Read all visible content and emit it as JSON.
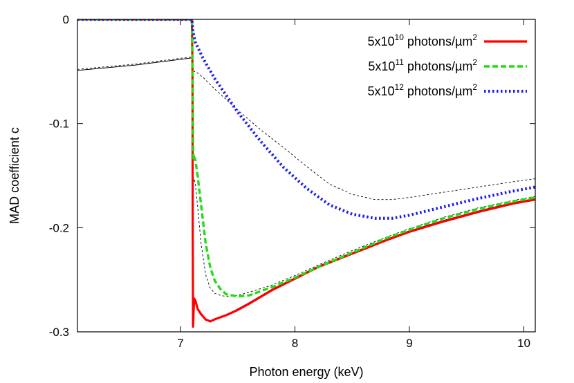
{
  "chart_data": {
    "type": "line",
    "title": "",
    "xlabel": "Photon energy (keV)",
    "ylabel": "MAD coefficient c",
    "xlim": [
      6.1,
      10.1
    ],
    "ylim": [
      -0.3,
      0.0
    ],
    "xticks": [
      7,
      8,
      9,
      10
    ],
    "yticks": [
      0,
      -0.1,
      -0.2,
      -0.3
    ],
    "xtick_labels": [
      "7",
      "8",
      "9",
      "10"
    ],
    "ytick_labels": [
      "0",
      "-0.1",
      "-0.2",
      "-0.3"
    ],
    "grid": false,
    "legend_position": "top-right",
    "series": [
      {
        "name": "5x10^10 photons/µm^2",
        "legend": {
          "base": "5x10",
          "exp": "10",
          "unit": " photons/µm",
          "unit_exp": "2"
        },
        "color": "#ff0000",
        "style": "solid",
        "in_legend": true,
        "x": [
          6.1,
          7.1,
          7.105,
          7.107,
          7.11,
          7.115,
          7.12,
          7.13,
          7.15,
          7.18,
          7.22,
          7.26,
          7.3,
          7.4,
          7.5,
          7.6,
          7.8,
          8.0,
          8.2,
          8.5,
          8.8,
          9.0,
          9.3,
          9.6,
          9.9,
          10.1
        ],
        "y": [
          0.0,
          0.0,
          -0.05,
          -0.2,
          -0.295,
          -0.28,
          -0.268,
          -0.27,
          -0.278,
          -0.283,
          -0.288,
          -0.29,
          -0.288,
          -0.284,
          -0.279,
          -0.273,
          -0.26,
          -0.249,
          -0.238,
          -0.225,
          -0.212,
          -0.204,
          -0.194,
          -0.185,
          -0.177,
          -0.173
        ]
      },
      {
        "name": "5x10^11 photons/µm^2",
        "legend": {
          "base": "5x10",
          "exp": "11",
          "unit": " photons/µm",
          "unit_exp": "2"
        },
        "color": "#22dd11",
        "style": "dashed",
        "in_legend": true,
        "x": [
          6.1,
          7.1,
          7.105,
          7.11,
          7.115,
          7.12,
          7.13,
          7.15,
          7.18,
          7.22,
          7.26,
          7.3,
          7.35,
          7.4,
          7.5,
          7.6,
          7.8,
          8.0,
          8.2,
          8.5,
          8.8,
          9.0,
          9.3,
          9.6,
          9.9,
          10.1
        ],
        "y": [
          0.0,
          0.0,
          -0.04,
          -0.12,
          -0.135,
          -0.132,
          -0.135,
          -0.15,
          -0.178,
          -0.215,
          -0.238,
          -0.251,
          -0.259,
          -0.264,
          -0.266,
          -0.265,
          -0.257,
          -0.248,
          -0.238,
          -0.224,
          -0.21,
          -0.202,
          -0.191,
          -0.182,
          -0.175,
          -0.171
        ]
      },
      {
        "name": "5x10^12 photons/µm^2",
        "legend": {
          "base": "5x10",
          "exp": "12",
          "unit": " photons/µm",
          "unit_exp": "2"
        },
        "color": "#1a1aee",
        "style": "dotted",
        "in_legend": true,
        "x": [
          6.1,
          7.1,
          7.11,
          7.13,
          7.2,
          7.3,
          7.5,
          7.7,
          7.9,
          8.1,
          8.3,
          8.5,
          8.7,
          8.85,
          9.0,
          9.3,
          9.6,
          9.9,
          10.1
        ],
        "y": [
          0.0,
          0.0,
          -0.012,
          -0.022,
          -0.038,
          -0.057,
          -0.089,
          -0.117,
          -0.142,
          -0.162,
          -0.178,
          -0.187,
          -0.191,
          -0.191,
          -0.188,
          -0.18,
          -0.172,
          -0.165,
          -0.161
        ]
      },
      {
        "name": "",
        "color": "#000000",
        "style": "solid",
        "in_legend": false,
        "x": [
          6.1,
          6.6,
          7.1,
          7.105,
          7.107,
          7.11,
          7.115,
          7.12,
          7.13,
          7.15,
          7.18,
          7.22,
          7.26,
          7.3,
          7.4,
          7.5,
          7.6,
          7.8,
          8.0,
          8.2,
          8.5,
          8.8,
          9.0,
          9.3,
          9.6,
          9.9,
          10.1
        ],
        "y": [
          -0.049,
          -0.044,
          -0.037,
          -0.1,
          -0.25,
          -0.295,
          -0.28,
          -0.27,
          -0.272,
          -0.279,
          -0.284,
          -0.289,
          -0.29,
          -0.288,
          -0.284,
          -0.278,
          -0.272,
          -0.259,
          -0.248,
          -0.237,
          -0.224,
          -0.211,
          -0.203,
          -0.193,
          -0.184,
          -0.176,
          -0.172
        ]
      },
      {
        "name": "",
        "color": "#000000",
        "style": "fine-dashed",
        "in_legend": false,
        "x": [
          6.1,
          6.6,
          7.1,
          7.105,
          7.11,
          7.115,
          7.12,
          7.13,
          7.15,
          7.18,
          7.22,
          7.26,
          7.3,
          7.35,
          7.4,
          7.5,
          7.6,
          7.8,
          8.0,
          8.2,
          8.5,
          8.8,
          9.0,
          9.3,
          9.6,
          9.9,
          10.1
        ],
        "y": [
          -0.048,
          -0.043,
          -0.036,
          -0.1,
          -0.16,
          -0.155,
          -0.153,
          -0.158,
          -0.18,
          -0.215,
          -0.245,
          -0.258,
          -0.263,
          -0.265,
          -0.266,
          -0.265,
          -0.262,
          -0.255,
          -0.246,
          -0.236,
          -0.222,
          -0.209,
          -0.201,
          -0.19,
          -0.181,
          -0.174,
          -0.17
        ]
      },
      {
        "name": "",
        "color": "#000000",
        "style": "fine-dashed",
        "in_legend": false,
        "x": [
          7.11,
          7.13,
          7.2,
          7.3,
          7.5,
          7.7,
          7.9,
          8.1,
          8.3,
          8.5,
          8.7,
          8.85,
          9.0,
          9.3,
          9.6,
          9.9,
          10.1
        ],
        "y": [
          -0.05,
          -0.05,
          -0.056,
          -0.067,
          -0.087,
          -0.106,
          -0.123,
          -0.141,
          -0.158,
          -0.168,
          -0.173,
          -0.173,
          -0.171,
          -0.166,
          -0.161,
          -0.156,
          -0.153
        ]
      }
    ]
  }
}
